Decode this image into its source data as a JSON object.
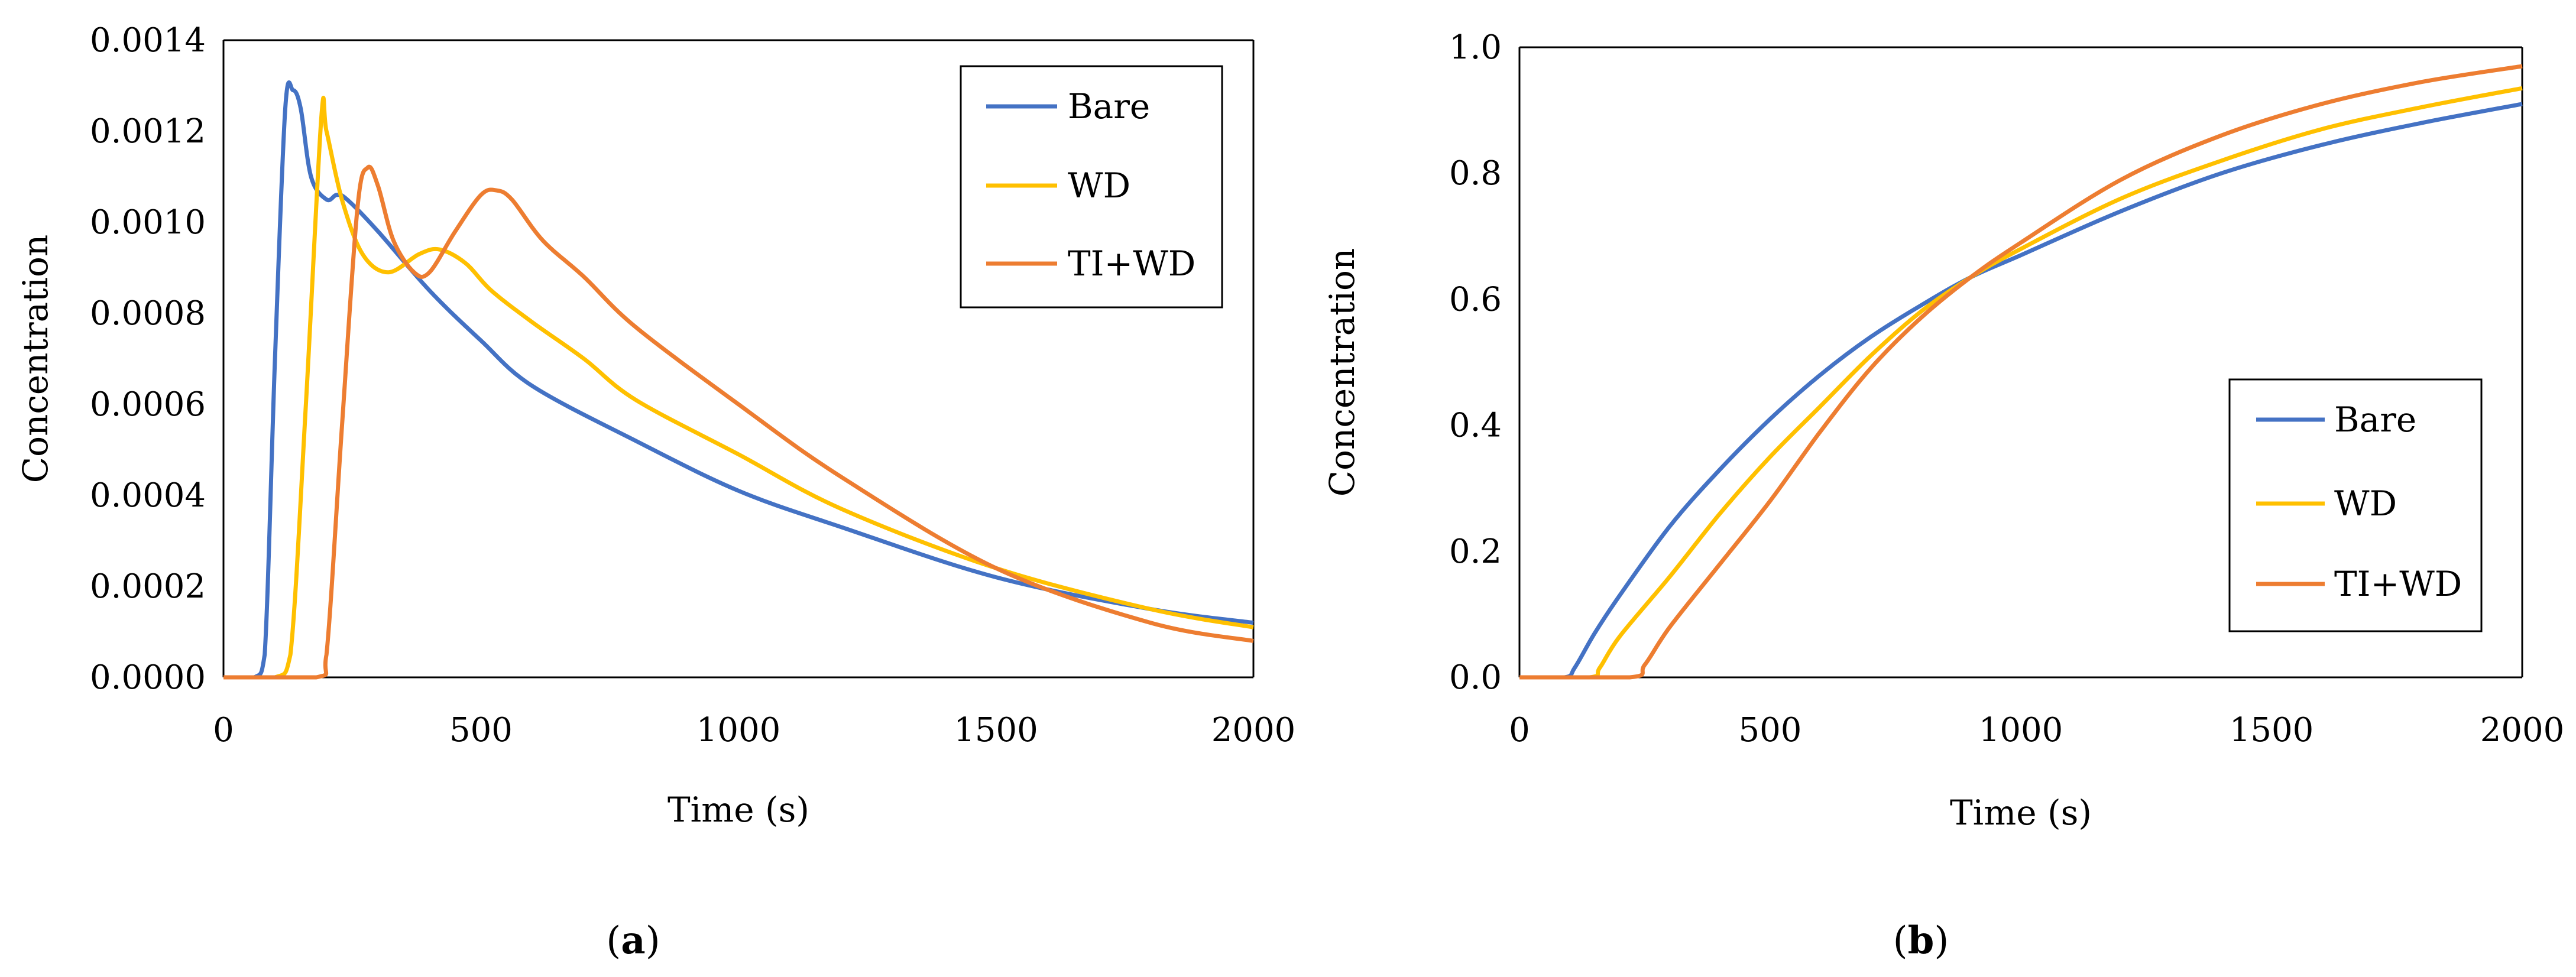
{
  "chart_data": [
    {
      "type": "line",
      "panel_label": "a",
      "xlabel": "Time (s)",
      "ylabel": "Concentration",
      "xlim": [
        0,
        2000
      ],
      "ylim": [
        0,
        0.0014
      ],
      "x_ticks": [
        "0",
        "500",
        "1000",
        "1500",
        "2000"
      ],
      "y_ticks": [
        "0.0000",
        "0.0002",
        "0.0004",
        "0.0006",
        "0.0008",
        "0.0010",
        "0.0012",
        "0.0014"
      ],
      "legend_position": "top-right",
      "series": [
        {
          "name": "Bare",
          "color": "#4472C4",
          "x": [
            0,
            60,
            80,
            100,
            120,
            135,
            150,
            170,
            200,
            220,
            240,
            300,
            400,
            500,
            600,
            800,
            1000,
            1200,
            1500,
            1800,
            2000
          ],
          "y": [
            0,
            0,
            5e-05,
            0.0007,
            0.00125,
            0.00129,
            0.00125,
            0.0011,
            0.00105,
            0.00106,
            0.00105,
            0.00098,
            0.00085,
            0.00074,
            0.00064,
            0.00052,
            0.00041,
            0.00033,
            0.00022,
            0.00015,
            0.00012
          ]
        },
        {
          "name": "WD",
          "color": "#FFC000",
          "x": [
            0,
            100,
            130,
            160,
            190,
            200,
            230,
            270,
            320,
            380,
            420,
            470,
            520,
            600,
            700,
            800,
            1000,
            1200,
            1500,
            1800,
            2000
          ],
          "y": [
            0,
            0,
            5e-05,
            0.0006,
            0.00123,
            0.0012,
            0.00105,
            0.00093,
            0.00089,
            0.00093,
            0.00094,
            0.00091,
            0.00085,
            0.00078,
            0.0007,
            0.00061,
            0.00049,
            0.00037,
            0.00024,
            0.00015,
            0.00011
          ]
        },
        {
          "name": "TI+WD",
          "color": "#ED7D31",
          "x": [
            0,
            180,
            200,
            230,
            260,
            280,
            300,
            330,
            370,
            400,
            450,
            500,
            530,
            560,
            620,
            700,
            800,
            1000,
            1200,
            1500,
            1800,
            2000
          ],
          "y": [
            0,
            0,
            5e-05,
            0.00055,
            0.00103,
            0.00112,
            0.00108,
            0.00096,
            0.00089,
            0.00089,
            0.00098,
            0.00106,
            0.00107,
            0.00105,
            0.00096,
            0.00088,
            0.00077,
            0.0006,
            0.00044,
            0.00024,
            0.00012,
            8e-05
          ]
        }
      ]
    },
    {
      "type": "line",
      "panel_label": "b",
      "xlabel": "Time (s)",
      "ylabel": "Concentration",
      "xlim": [
        0,
        2000
      ],
      "ylim": [
        0,
        1.0
      ],
      "x_ticks": [
        "0",
        "500",
        "1000",
        "1500",
        "2000"
      ],
      "y_ticks": [
        "0.0",
        "0.2",
        "0.4",
        "0.6",
        "0.8",
        "1.0"
      ],
      "legend_position": "center-right",
      "series": [
        {
          "name": "Bare",
          "color": "#4472C4",
          "x": [
            0,
            90,
            110,
            150,
            200,
            300,
            400,
            500,
            600,
            700,
            800,
            900,
            1000,
            1200,
            1400,
            1600,
            1800,
            2000
          ],
          "y": [
            0,
            0,
            0.015,
            0.07,
            0.13,
            0.24,
            0.33,
            0.41,
            0.48,
            0.54,
            0.59,
            0.635,
            0.67,
            0.74,
            0.8,
            0.845,
            0.88,
            0.91
          ]
        },
        {
          "name": "WD",
          "color": "#FFC000",
          "x": [
            0,
            140,
            160,
            200,
            300,
            400,
            500,
            600,
            700,
            800,
            900,
            1000,
            1200,
            1400,
            1600,
            1800,
            2000
          ],
          "y": [
            0,
            0,
            0.015,
            0.065,
            0.16,
            0.26,
            0.35,
            0.43,
            0.51,
            0.58,
            0.635,
            0.68,
            0.76,
            0.82,
            0.87,
            0.905,
            0.935
          ]
        },
        {
          "name": "TI+WD",
          "color": "#ED7D31",
          "x": [
            0,
            220,
            250,
            300,
            400,
            500,
            600,
            700,
            800,
            900,
            1000,
            1200,
            1400,
            1600,
            1800,
            2000
          ],
          "y": [
            0,
            0,
            0.02,
            0.08,
            0.18,
            0.28,
            0.39,
            0.49,
            0.57,
            0.635,
            0.69,
            0.79,
            0.86,
            0.91,
            0.945,
            0.97
          ]
        }
      ]
    }
  ]
}
